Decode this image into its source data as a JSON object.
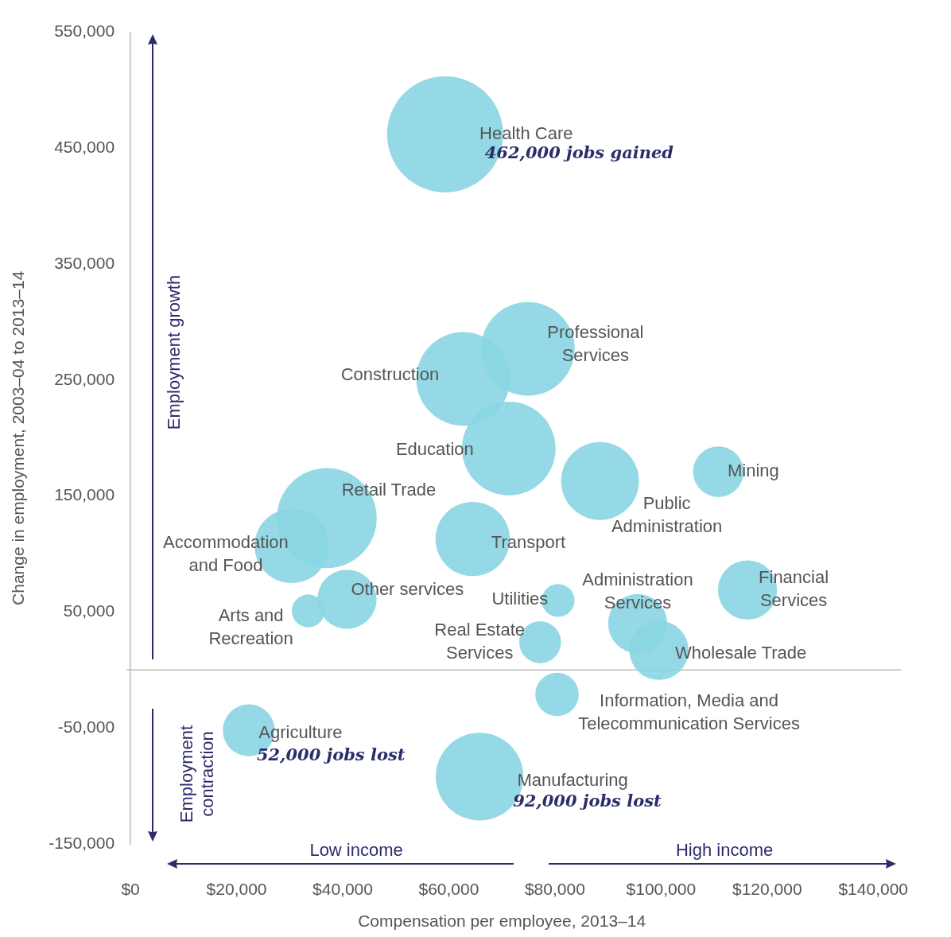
{
  "chart_data": {
    "type": "bubble",
    "xlabel": "Compensation per employee, 2013–14",
    "ylabel": "Change in employment, 2003–04 to 2013–14",
    "xlim": [
      0,
      140000
    ],
    "xticks": [
      {
        "value": 0,
        "label": "$0"
      },
      {
        "value": 20000,
        "label": "$20,000"
      },
      {
        "value": 40000,
        "label": "$40,000"
      },
      {
        "value": 60000,
        "label": "$60,000"
      },
      {
        "value": 80000,
        "label": "$80,000"
      },
      {
        "value": 100000,
        "label": "$100,000"
      },
      {
        "value": 120000,
        "label": "$120,000"
      },
      {
        "value": 140000,
        "label": "$140,000"
      }
    ],
    "ylim": [
      -150000,
      550000
    ],
    "yticks": [
      {
        "value": -150000,
        "label": "-150,000"
      },
      {
        "value": -50000,
        "label": "-50,000"
      },
      {
        "value": 50000,
        "label": "50,000"
      },
      {
        "value": 150000,
        "label": "150,000"
      },
      {
        "value": 250000,
        "label": "250,000"
      },
      {
        "value": 350000,
        "label": "350,000"
      },
      {
        "value": 450000,
        "label": "450,000"
      },
      {
        "value": 550000,
        "label": "550,000"
      }
    ],
    "grid": false,
    "legend": false,
    "ref_lines": [
      {
        "axis": "y",
        "value": 0,
        "color": "#bbbbbb"
      }
    ],
    "series": [
      {
        "name": "Health Care",
        "color": "#88d5e2",
        "x": [
          59300
        ],
        "values": [
          462000
        ],
        "sizes": [
          1
        ]
      },
      {
        "name": "Professional\nServices",
        "color": "#88d5e2",
        "x": [
          74900
        ],
        "values": [
          277000
        ],
        "sizes": [
          0.65
        ]
      },
      {
        "name": "Construction",
        "color": "#88d5e2",
        "x": [
          62700
        ],
        "values": [
          251000
        ],
        "sizes": [
          0.65
        ]
      },
      {
        "name": "Education",
        "color": "#88d5e2",
        "x": [
          71300
        ],
        "values": [
          191000
        ],
        "sizes": [
          0.65
        ]
      },
      {
        "name": "Public\nAdministration",
        "color": "#88d5e2",
        "x": [
          88500
        ],
        "values": [
          163000
        ],
        "sizes": [
          0.45
        ]
      },
      {
        "name": "Mining",
        "color": "#88d5e2",
        "x": [
          110800
        ],
        "values": [
          171000
        ],
        "sizes": [
          0.19
        ]
      },
      {
        "name": "Retail Trade",
        "color": "#88d5e2",
        "x": [
          37000
        ],
        "values": [
          131000
        ],
        "sizes": [
          0.74
        ]
      },
      {
        "name": "Accommodation\nand Food",
        "color": "#88d5e2",
        "x": [
          30400
        ],
        "values": [
          107000
        ],
        "sizes": [
          0.41
        ]
      },
      {
        "name": "Transport",
        "color": "#88d5e2",
        "x": [
          64500
        ],
        "values": [
          113000
        ],
        "sizes": [
          0.41
        ]
      },
      {
        "name": "Other services",
        "color": "#88d5e2",
        "x": [
          40800
        ],
        "values": [
          61000
        ],
        "sizes": [
          0.26
        ]
      },
      {
        "name": "Arts and\nRecreation",
        "color": "#88d5e2",
        "x": [
          33500
        ],
        "values": [
          51000
        ],
        "sizes": [
          0.08
        ]
      },
      {
        "name": "Utilities",
        "color": "#88d5e2",
        "x": [
          80600
        ],
        "values": [
          60000
        ],
        "sizes": [
          0.08
        ]
      },
      {
        "name": "Administration\nServices",
        "color": "#88d5e2",
        "x": [
          95600
        ],
        "values": [
          40000
        ],
        "sizes": [
          0.26
        ]
      },
      {
        "name": "Financial\nServices",
        "color": "#88d5e2",
        "x": [
          116300
        ],
        "values": [
          69000
        ],
        "sizes": [
          0.26
        ]
      },
      {
        "name": "Real Estate\nServices",
        "color": "#88d5e2",
        "x": [
          77200
        ],
        "values": [
          24000
        ],
        "sizes": [
          0.13
        ]
      },
      {
        "name": "Wholesale Trade",
        "color": "#88d5e2",
        "x": [
          99600
        ],
        "values": [
          17000
        ],
        "sizes": [
          0.26
        ]
      },
      {
        "name": "Information, Media and\nTelecommunication Services",
        "color": "#88d5e2",
        "x": [
          80400
        ],
        "values": [
          -21000
        ],
        "sizes": [
          0.14
        ]
      },
      {
        "name": "Agriculture",
        "color": "#88d5e2",
        "x": [
          22300
        ],
        "values": [
          -52000
        ],
        "sizes": [
          0.2
        ]
      },
      {
        "name": "Manufacturing",
        "color": "#88d5e2",
        "x": [
          65800
        ],
        "values": [
          -92000
        ],
        "sizes": [
          0.57
        ]
      }
    ],
    "annotations": [
      "Employment growth",
      "Employment contraction",
      "Low income",
      "High income",
      {
        "text": "462,000 jobs gained",
        "x": 59300,
        "y": 462000
      },
      {
        "text": "52,000 jobs lost",
        "x": 22300,
        "y": -52000
      },
      {
        "text": "92,000 jobs lost",
        "x": 65800,
        "y": -92000
      }
    ]
  }
}
